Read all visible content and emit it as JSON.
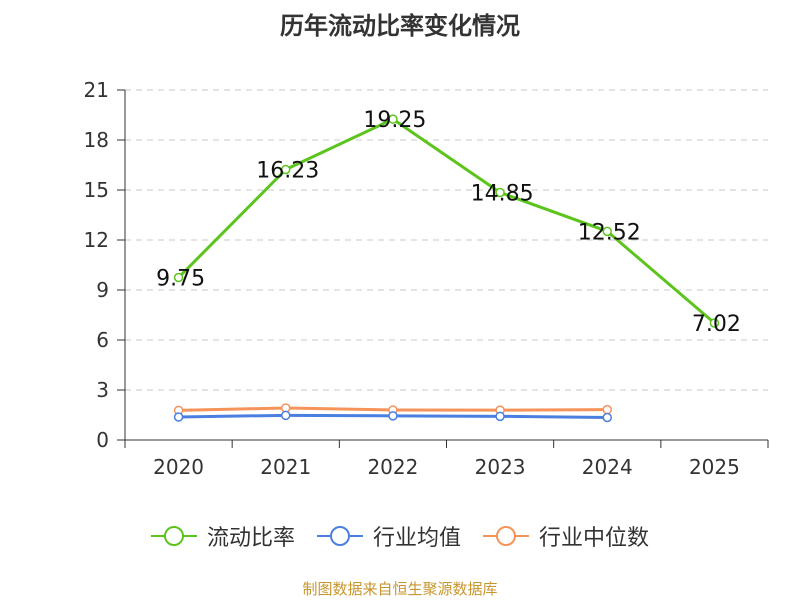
{
  "chart_data": {
    "type": "line",
    "title": "历年流动比率变化情况",
    "categories": [
      "2020",
      "2021",
      "2022",
      "2023",
      "2024",
      "2025"
    ],
    "ylim": [
      0,
      21
    ],
    "yticks": [
      0,
      3,
      6,
      9,
      12,
      15,
      18,
      21
    ],
    "grid": true,
    "legend_position": "bottom",
    "series": [
      {
        "name": "流动比率",
        "color": "#5cc41d",
        "values": [
          9.75,
          16.23,
          19.25,
          14.85,
          12.52,
          7.02
        ],
        "labels": [
          "9.75",
          "16.23",
          "19.25",
          "14.85",
          "12.52",
          "7.02"
        ]
      },
      {
        "name": "行业均值",
        "color": "#4a7fe0",
        "values": [
          1.38,
          1.48,
          1.45,
          1.42,
          1.35,
          null
        ]
      },
      {
        "name": "行业中位数",
        "color": "#f5935a",
        "values": [
          1.78,
          1.92,
          1.8,
          1.79,
          1.82,
          null
        ]
      }
    ]
  },
  "footer": {
    "source": "制图数据来自恒生聚源数据库"
  }
}
